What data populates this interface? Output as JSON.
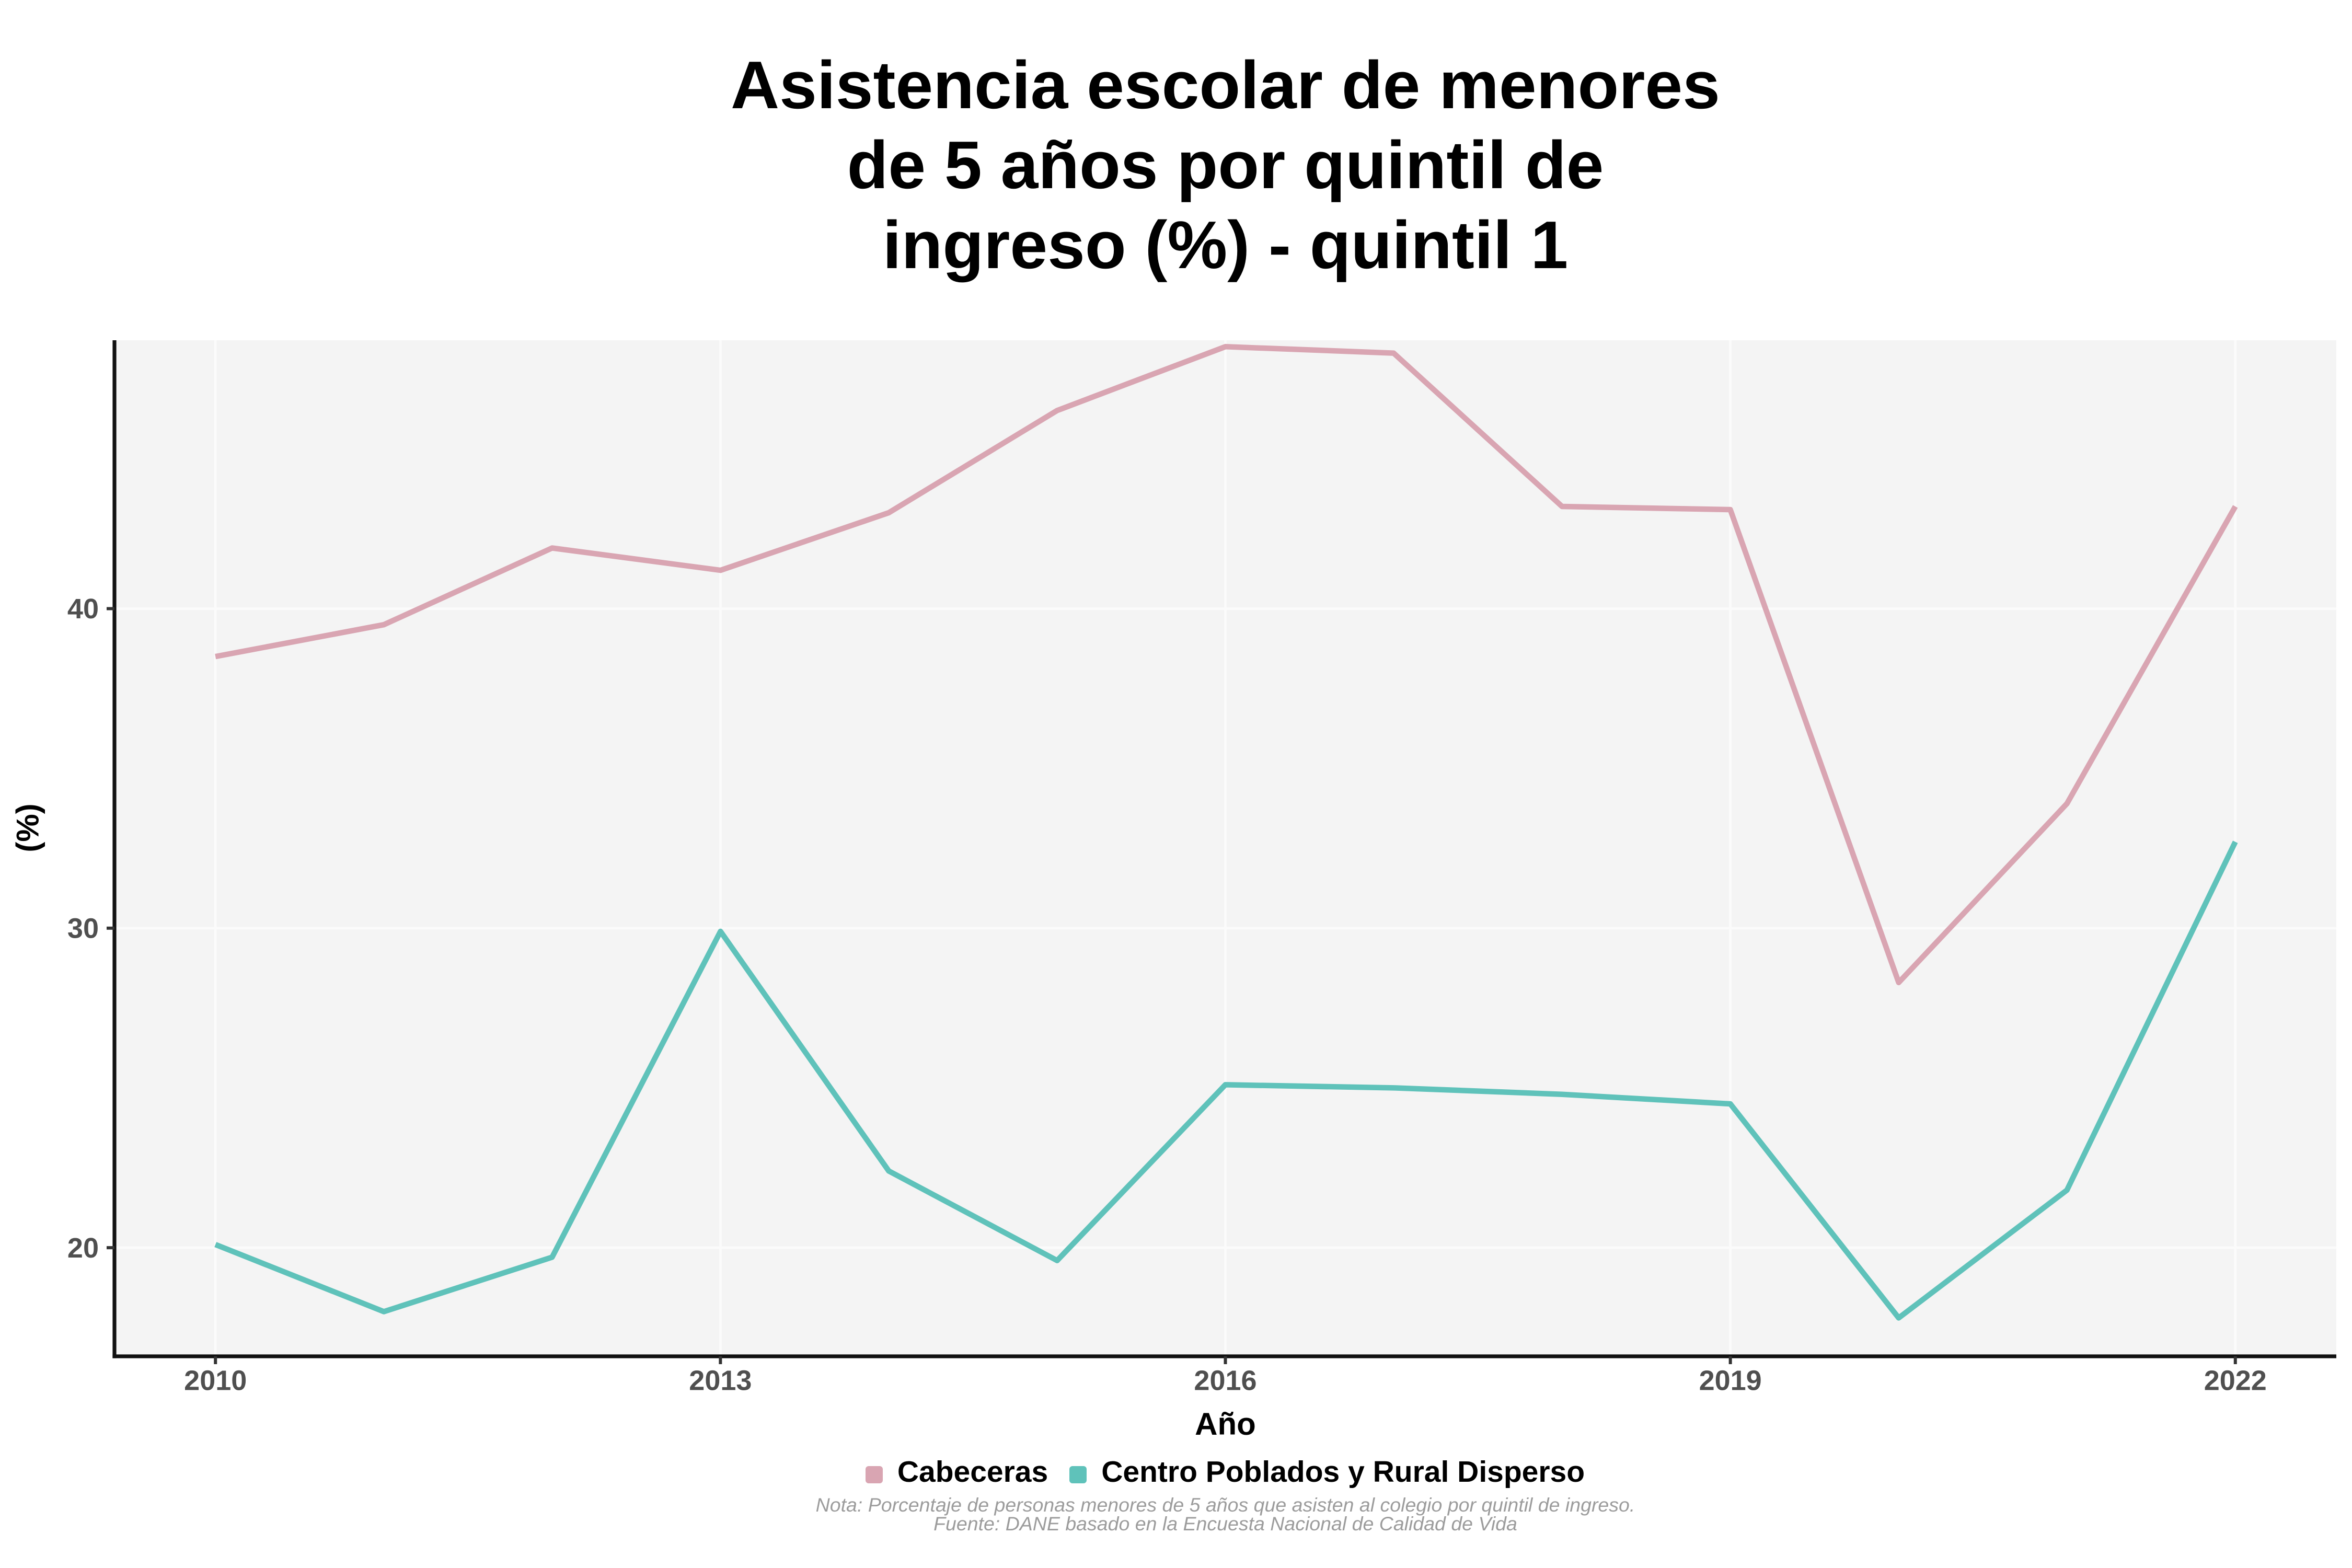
{
  "title_lines": [
    "Asistencia escolar de menores",
    "de 5 años por quintil de",
    "ingreso (%) - quintil 1"
  ],
  "chart_data": {
    "type": "line",
    "x": [
      2010,
      2011,
      2012,
      2013,
      2014,
      2015,
      2016,
      2017,
      2018,
      2019,
      2020,
      2021,
      2022
    ],
    "series": [
      {
        "name": "Cabeceras",
        "color": "#d9a5b2",
        "values": [
          38.5,
          39.5,
          41.9,
          41.2,
          43.0,
          46.2,
          48.2,
          48.0,
          43.2,
          43.1,
          28.3,
          33.9,
          43.2
        ]
      },
      {
        "name": "Centro Poblados y Rural Disperso",
        "color": "#5fc2ba",
        "values": [
          20.1,
          18.0,
          19.7,
          29.9,
          22.4,
          19.6,
          25.1,
          25.0,
          24.8,
          24.5,
          17.8,
          21.8,
          32.7
        ]
      }
    ],
    "title": "Asistencia escolar de menores de 5 años por quintil de ingreso (%) - quintil 1",
    "xlabel": "Año",
    "ylabel": "(%)",
    "x_ticks": [
      2010,
      2013,
      2016,
      2019,
      2022
    ],
    "y_ticks": [
      20,
      30,
      40
    ],
    "xlim": [
      2009.4,
      2022.6
    ],
    "ylim": [
      16.6,
      48.4
    ],
    "grid": true,
    "legend_position": "bottom"
  },
  "legend": [
    {
      "label": "Cabeceras"
    },
    {
      "label": "Centro Poblados y Rural Disperso"
    }
  ],
  "caption_lines": [
    "Nota: Porcentaje de personas menores de 5 años que asisten al colegio por quintil de ingreso.",
    "Fuente: DANE basado en la Encuesta Nacional de Calidad de Vida"
  ],
  "colors": {
    "background": "#ffffff",
    "panel_bg": "#f4f4f4",
    "grid": "#fbfbfb",
    "axis_line": "#111111",
    "tick_mark": "#333333",
    "tick_text": "#4f4f4f",
    "axis_title_text": "#000000",
    "title_text": "#000000",
    "caption_text": "#9c9c9c",
    "series_cabeceras": "#d9a5b2",
    "series_rural": "#5fc2ba"
  }
}
